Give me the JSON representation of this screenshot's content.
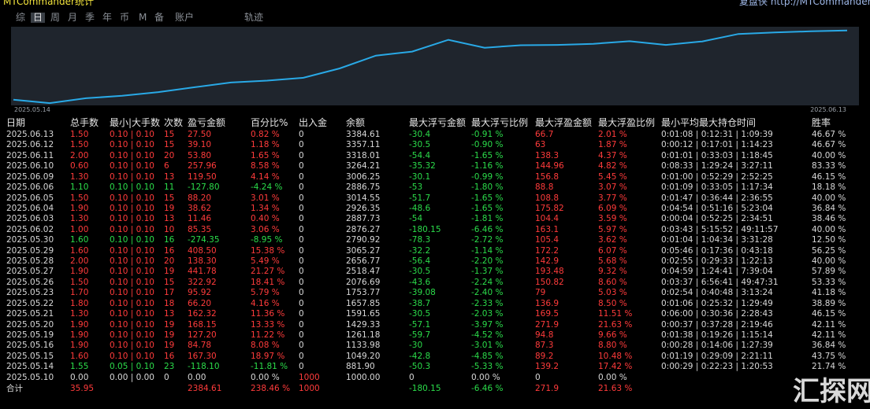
{
  "header": {
    "title": "MTCommander统计",
    "site": "复盘侠 http://MTCommander.com"
  },
  "tabs": [
    "综",
    "日",
    "周",
    "月",
    "季",
    "年",
    "币",
    "M",
    "备",
    "账户",
    "轨迹"
  ],
  "chart": {
    "type": "line",
    "x_start_label": "2025.05.14",
    "x_end_label": "2025.06.13",
    "ylim": [
      830,
      3460
    ],
    "color": "#29a9e6"
  },
  "table": {
    "columns": [
      "日期",
      "总手数",
      "最小|大手数",
      "次数",
      "盈亏金额",
      "百分比%",
      "出入金",
      "余额",
      "最大浮亏金额",
      "最大浮亏比例",
      "最大浮盈金额",
      "最大浮盈比例",
      "最小平均最大持仓时间",
      "胜率"
    ],
    "rows": [
      [
        "2025.06.13",
        "1.50",
        "0.10 | 0.10",
        "15",
        "27.50",
        "0.82 %",
        "0",
        "3384.61",
        "-30.4",
        "-0.91 %",
        "66.7",
        "2.01 %",
        "0:01:08 | 0:12:31 | 1:09:39",
        "46.67 %"
      ],
      [
        "2025.06.12",
        "1.50",
        "0.10 | 0.10",
        "15",
        "39.10",
        "1.18 %",
        "0",
        "3357.11",
        "-30.5",
        "-0.90 %",
        "63",
        "1.87 %",
        "0:00:12 | 0:17:01 | 1:14:23",
        "46.67 %"
      ],
      [
        "2025.06.11",
        "2.00",
        "0.10 | 0.10",
        "20",
        "53.80",
        "1.65 %",
        "0",
        "3318.01",
        "-54.4",
        "-1.65 %",
        "138.3",
        "4.37 %",
        "0:01:01 | 0:33:03 | 1:18:45",
        "40.00 %"
      ],
      [
        "2025.06.10",
        "0.60",
        "0.10 | 0.10",
        "6",
        "257.96",
        "8.58 %",
        "0",
        "3264.21",
        "-35.32",
        "-1.16 %",
        "144.96",
        "4.82 %",
        "0:08:33 | 1:29:24 | 3:27:11",
        "83.33 %"
      ],
      [
        "2025.06.09",
        "1.30",
        "0.10 | 0.10",
        "13",
        "119.50",
        "4.14 %",
        "0",
        "3006.25",
        "-30.1",
        "-0.99 %",
        "156.8",
        "5.45 %",
        "0:01:00 | 0:52:29 | 2:52:25",
        "46.15 %"
      ],
      [
        "2025.06.06",
        "1.10",
        "0.10 | 0.10",
        "11",
        "-127.80",
        "-4.24 %",
        "0",
        "2886.75",
        "-53",
        "-1.80 %",
        "88.8",
        "3.07 %",
        "0:01:09 | 0:33:05 | 1:17:34",
        "18.18 %"
      ],
      [
        "2025.06.05",
        "1.50",
        "0.10 | 0.10",
        "15",
        "88.20",
        "3.01 %",
        "0",
        "3014.55",
        "-51.7",
        "-1.65 %",
        "108.8",
        "3.77 %",
        "0:01:47 | 0:36:44 | 2:36:55",
        "40.00 %"
      ],
      [
        "2025.06.04",
        "1.90",
        "0.10 | 0.10",
        "19",
        "38.62",
        "1.34 %",
        "0",
        "2926.35",
        "-48.6",
        "-1.65 %",
        "175.82",
        "6.09 %",
        "0:04:54 | 0:51:16 | 5:23:04",
        "36.84 %"
      ],
      [
        "2025.06.03",
        "1.30",
        "0.10 | 0.10",
        "13",
        "11.46",
        "0.40 %",
        "0",
        "2887.73",
        "-54",
        "-1.81 %",
        "104.4",
        "3.59 %",
        "0:00:04 | 0:52:25 | 2:34:51",
        "38.46 %"
      ],
      [
        "2025.06.02",
        "1.00",
        "0.10 | 0.10",
        "10",
        "85.35",
        "3.06 %",
        "0",
        "2876.27",
        "-180.15",
        "-6.46 %",
        "163.1",
        "5.97 %",
        "0:03:43 | 5:15:52 | 49:11:57",
        "40.00 %"
      ],
      [
        "2025.05.30",
        "1.60",
        "0.10 | 0.10",
        "16",
        "-274.35",
        "-8.95 %",
        "0",
        "2790.92",
        "-78.3",
        "-2.72 %",
        "105.4",
        "3.62 %",
        "0:01:04 | 1:04:34 | 3:31:28",
        "12.50 %"
      ],
      [
        "2025.05.29",
        "1.60",
        "0.10 | 0.10",
        "16",
        "408.50",
        "15.38 %",
        "0",
        "3065.27",
        "-32.2",
        "-1.14 %",
        "172.2",
        "6.07 %",
        "0:05:46 | 0:17:36 | 0:43:18",
        "56.25 %"
      ],
      [
        "2025.05.28",
        "2.00",
        "0.10 | 0.10",
        "20",
        "138.30",
        "5.49 %",
        "0",
        "2656.77",
        "-56.4",
        "-2.20 %",
        "142.9",
        "5.68 %",
        "0:02:55 | 0:29:33 | 1:22:13",
        "40.00 %"
      ],
      [
        "2025.05.27",
        "1.90",
        "0.10 | 0.10",
        "19",
        "441.78",
        "21.27 %",
        "0",
        "2518.47",
        "-30.5",
        "-1.37 %",
        "193.48",
        "9.32 %",
        "0:04:59 | 1:24:41 | 7:39:04",
        "57.89 %"
      ],
      [
        "2025.05.26",
        "1.50",
        "0.10 | 0.10",
        "15",
        "322.92",
        "18.41 %",
        "0",
        "2076.69",
        "-43.6",
        "-2.24 %",
        "150.82",
        "8.60 %",
        "0:03:37 | 6:56:41 | 49:47:31",
        "53.33 %"
      ],
      [
        "2025.05.23",
        "1.70",
        "0.10 | 0.10",
        "17",
        "95.92",
        "5.79 %",
        "0",
        "1753.77",
        "-39.08",
        "-2.40 %",
        "79",
        "5.03 %",
        "0:02:54 | 0:40:48 | 3:13:24",
        "41.18 %"
      ],
      [
        "2025.05.22",
        "1.80",
        "0.10 | 0.10",
        "18",
        "66.20",
        "4.16 %",
        "0",
        "1657.85",
        "-38.7",
        "-2.33 %",
        "136.9",
        "8.50 %",
        "0:01:06 | 0:25:32 | 1:29:49",
        "38.89 %"
      ],
      [
        "2025.05.21",
        "1.30",
        "0.10 | 0.10",
        "13",
        "162.32",
        "11.36 %",
        "0",
        "1591.65",
        "-30.5",
        "-2.03 %",
        "169.5",
        "11.51 %",
        "0:06:00 | 0:30:36 | 2:28:43",
        "46.15 %"
      ],
      [
        "2025.05.20",
        "1.90",
        "0.10 | 0.10",
        "19",
        "168.15",
        "13.33 %",
        "0",
        "1429.33",
        "-57.1",
        "-3.97 %",
        "271.9",
        "21.63 %",
        "0:00:37 | 0:37:28 | 2:19:46",
        "42.11 %"
      ],
      [
        "2025.05.19",
        "1.90",
        "0.10 | 0.10",
        "19",
        "127.20",
        "11.22 %",
        "0",
        "1261.18",
        "-59.7",
        "-4.52 %",
        "94.8",
        "9.66 %",
        "0:01:38 | 0:19:26 | 1:15:14",
        "42.11 %"
      ],
      [
        "2025.05.16",
        "1.90",
        "0.10 | 0.10",
        "19",
        "84.78",
        "8.08 %",
        "0",
        "1133.98",
        "-30",
        "-3.01 %",
        "87.3",
        "8.80 %",
        "0:00:28 | 0:14:06 | 1:27:39",
        "36.84 %"
      ],
      [
        "2025.05.15",
        "1.60",
        "0.10 | 0.10",
        "16",
        "167.30",
        "18.97 %",
        "0",
        "1049.20",
        "-42.8",
        "-4.85 %",
        "89.2",
        "10.48 %",
        "0:01:19 | 0:29:09 | 2:21:11",
        "43.75 %"
      ],
      [
        "2025.05.14",
        "1.55",
        "0.05 | 0.10",
        "23",
        "-118.10",
        "-11.81 %",
        "0",
        "881.90",
        "-50.3",
        "-5.33 %",
        "139.2",
        "17.42 %",
        "0:00:29 | 0:22:23 | 1:20:53",
        "21.74 %"
      ],
      [
        "2025.05.10",
        "0.00",
        "0.00 | 0.00",
        "0",
        "0.00",
        "0.00 %",
        "1000",
        "1000.00",
        "0",
        "0.00 %",
        "0",
        "0.00 %",
        null,
        null
      ]
    ],
    "total": [
      "合计",
      "35.95",
      null,
      null,
      "2384.61",
      "238.46 %",
      "1000",
      null,
      "-180.15",
      "-6.46 %",
      "271.9",
      "21.63 %",
      null,
      null
    ]
  },
  "watermark": "汇探网"
}
